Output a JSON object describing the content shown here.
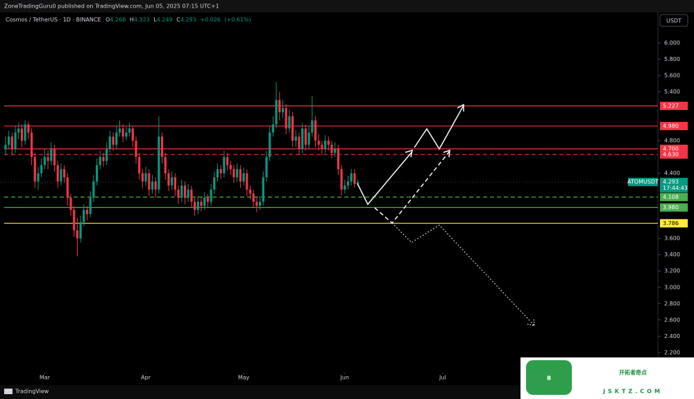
{
  "header": "ZoneTradingGuru0 published on TradingView.com, Jun 05, 2025 07:15 UTC+1",
  "footer": "TradingView",
  "watermark": {
    "logo": "B",
    "name": "开拓者奇点",
    "url": "JSKTZ.COM"
  },
  "chart_data": {
    "type": "candlestick",
    "title": "Cosmos / TetherUS · 1D · BINANCE",
    "currency": "USDT",
    "legend_labels": [
      "O",
      "H",
      "L",
      "C"
    ],
    "change": "+0.026",
    "change_pct": "(+0.61%)",
    "countdown": "17:44:43",
    "xlim": [
      -1.7,
      200
    ],
    "ylim": [
      2.02,
      6.34
    ],
    "xticks": [
      {
        "value": 12,
        "label": "Mar"
      },
      {
        "value": 43,
        "label": "Apr"
      },
      {
        "value": 73,
        "label": "May"
      },
      {
        "value": 104,
        "label": "Jun"
      },
      {
        "value": 134,
        "label": "Jul"
      }
    ],
    "yticks": [
      {
        "value": 6,
        "label": "6.000"
      },
      {
        "value": 5.8,
        "label": "5.800"
      },
      {
        "value": 5.6,
        "label": "5.600"
      },
      {
        "value": 5.4,
        "label": "5.400"
      },
      {
        "value": 4.8,
        "label": "4.800"
      },
      {
        "value": 4.4,
        "label": "4.400"
      },
      {
        "value": 3.6,
        "label": "3.600"
      },
      {
        "value": 3.4,
        "label": "3.400"
      },
      {
        "value": 3.2,
        "label": "3.200"
      },
      {
        "value": 3,
        "label": "3.000"
      },
      {
        "value": 2.8,
        "label": "2.800"
      },
      {
        "value": 2.6,
        "label": "2.600"
      },
      {
        "value": 2.4,
        "label": "2.400"
      },
      {
        "value": 2.2,
        "label": "2.200"
      }
    ],
    "grid": false,
    "levels": [
      {
        "value": 5.227,
        "color": "#f23645",
        "dashed": false
      },
      {
        "value": 4.98,
        "label": "4.980",
        "color": "#f23645",
        "dashed": false
      },
      {
        "value": 4.7,
        "label": "4.700",
        "color": "#f23645",
        "dashed": false
      },
      {
        "value": 4.63,
        "label": "4.630",
        "color": "#f23645",
        "dashed": true
      },
      {
        "value": 4.108,
        "color": "#4caf50",
        "dashed": true
      },
      {
        "value": 3.98,
        "label": "3.980",
        "color": "#4caf50",
        "dashed": false
      },
      {
        "value": 3.786,
        "color": "#ffeb3b",
        "dashed": false,
        "label_text": "#000000"
      }
    ],
    "series": [
      {
        "name": "ATOMUSDT",
        "up_color": "#089981",
        "down_color": "#f23645",
        "open": [
          4.7,
          4.75,
          4.85,
          4.7,
          4.9,
          4.95,
          4.8,
          5.0,
          4.9,
          4.6,
          4.3,
          4.4,
          4.5,
          4.6,
          4.55,
          4.7,
          4.5,
          4.3,
          4.45,
          4.35,
          4.1,
          3.95,
          3.7,
          3.6,
          3.8,
          3.95,
          3.9,
          4.1,
          4.3,
          4.5,
          4.6,
          4.55,
          4.7,
          4.85,
          4.75,
          4.9,
          4.95,
          4.85,
          4.9,
          4.95,
          4.8,
          4.6,
          4.4,
          4.3,
          4.4,
          4.2,
          4.3,
          4.2,
          4.85,
          4.6,
          4.4,
          4.25,
          4.35,
          4.2,
          4.1,
          4.25,
          4.1,
          4.2,
          4.05,
          3.95,
          4.05,
          4.0,
          4.1,
          4.05,
          4.2,
          4.35,
          4.45,
          4.4,
          4.6,
          4.5,
          4.45,
          4.35,
          4.45,
          4.3,
          4.4,
          4.2,
          4.15,
          4.05,
          4.0,
          4.05,
          4.35,
          4.6,
          4.9,
          5.0,
          5.3,
          5.15,
          5.2,
          4.95,
          5.1,
          4.8,
          4.85,
          4.7,
          4.95,
          4.75,
          4.9,
          5.05,
          4.8,
          4.75,
          4.7,
          4.8,
          4.75,
          4.65,
          4.7,
          4.45,
          4.2,
          4.25,
          4.3,
          4.4,
          4.268
        ],
        "high": [
          4.85,
          4.92,
          4.9,
          4.98,
          5.02,
          5.0,
          5.05,
          5.03,
          4.95,
          4.65,
          4.48,
          4.58,
          4.7,
          4.68,
          4.78,
          4.75,
          4.55,
          4.52,
          4.5,
          4.4,
          4.15,
          4.0,
          3.85,
          3.88,
          4.02,
          4.0,
          4.18,
          4.38,
          4.58,
          4.68,
          4.65,
          4.78,
          4.92,
          4.9,
          4.98,
          5.05,
          5.0,
          4.97,
          5.02,
          4.98,
          4.85,
          4.65,
          4.45,
          4.48,
          4.45,
          4.38,
          4.35,
          5.1,
          4.9,
          4.65,
          4.45,
          4.42,
          4.4,
          4.25,
          4.32,
          4.3,
          4.27,
          4.25,
          4.1,
          4.12,
          4.1,
          4.17,
          4.15,
          4.27,
          4.42,
          4.52,
          4.5,
          4.68,
          4.65,
          4.55,
          4.5,
          4.52,
          4.5,
          4.47,
          4.45,
          4.25,
          4.2,
          4.1,
          4.12,
          4.42,
          4.68,
          4.98,
          5.1,
          5.52,
          5.4,
          5.3,
          5.25,
          5.18,
          5.15,
          4.93,
          4.9,
          5.02,
          5.0,
          4.98,
          5.35,
          5.1,
          4.88,
          4.8,
          4.87,
          4.85,
          4.8,
          4.78,
          4.75,
          4.5,
          4.32,
          4.37,
          4.45,
          4.45,
          4.323
        ],
        "low": [
          4.62,
          4.7,
          4.62,
          4.65,
          4.82,
          4.72,
          4.75,
          4.82,
          4.5,
          4.22,
          4.2,
          4.35,
          4.45,
          4.45,
          4.5,
          4.42,
          4.22,
          4.25,
          4.28,
          4.0,
          3.88,
          3.62,
          3.38,
          3.55,
          3.75,
          3.82,
          3.86,
          4.05,
          4.25,
          4.45,
          4.48,
          4.5,
          4.65,
          4.68,
          4.7,
          4.85,
          4.78,
          4.8,
          4.85,
          4.72,
          4.52,
          4.32,
          4.22,
          4.25,
          4.12,
          4.15,
          4.1,
          4.15,
          4.52,
          4.32,
          4.18,
          4.2,
          4.12,
          4.02,
          4.05,
          4.02,
          4.05,
          3.98,
          3.88,
          3.9,
          3.93,
          3.95,
          3.98,
          4.0,
          4.15,
          4.3,
          4.33,
          4.35,
          4.43,
          4.38,
          4.28,
          4.3,
          4.22,
          4.25,
          4.12,
          4.08,
          3.98,
          3.92,
          3.95,
          4.0,
          4.3,
          4.55,
          4.85,
          4.95,
          5.05,
          5.08,
          4.88,
          4.9,
          4.72,
          4.72,
          4.62,
          4.65,
          4.68,
          4.7,
          4.85,
          4.72,
          4.68,
          4.62,
          4.65,
          4.68,
          4.58,
          4.6,
          4.38,
          4.13,
          4.15,
          4.2,
          4.25,
          4.22,
          4.249
        ],
        "close": [
          4.75,
          4.85,
          4.7,
          4.9,
          4.95,
          4.8,
          5.0,
          4.9,
          4.6,
          4.3,
          4.4,
          4.5,
          4.6,
          4.55,
          4.7,
          4.5,
          4.3,
          4.45,
          4.35,
          4.1,
          3.95,
          3.7,
          3.6,
          3.8,
          3.95,
          3.9,
          4.1,
          4.3,
          4.5,
          4.6,
          4.55,
          4.7,
          4.85,
          4.75,
          4.9,
          4.95,
          4.85,
          4.9,
          4.95,
          4.8,
          4.6,
          4.4,
          4.3,
          4.4,
          4.2,
          4.3,
          4.2,
          4.85,
          4.6,
          4.4,
          4.25,
          4.35,
          4.2,
          4.1,
          4.25,
          4.1,
          4.2,
          4.05,
          3.95,
          4.05,
          4.0,
          4.1,
          4.05,
          4.2,
          4.35,
          4.45,
          4.4,
          4.6,
          4.5,
          4.45,
          4.35,
          4.45,
          4.3,
          4.4,
          4.2,
          4.15,
          4.05,
          4.0,
          4.05,
          4.35,
          4.6,
          4.9,
          5.0,
          5.3,
          5.15,
          5.2,
          4.95,
          5.1,
          4.8,
          4.85,
          4.7,
          4.95,
          4.75,
          4.9,
          5.05,
          4.8,
          4.75,
          4.7,
          4.8,
          4.75,
          4.65,
          4.7,
          4.45,
          4.2,
          4.25,
          4.3,
          4.4,
          4.267,
          4.293
        ]
      }
    ]
  }
}
